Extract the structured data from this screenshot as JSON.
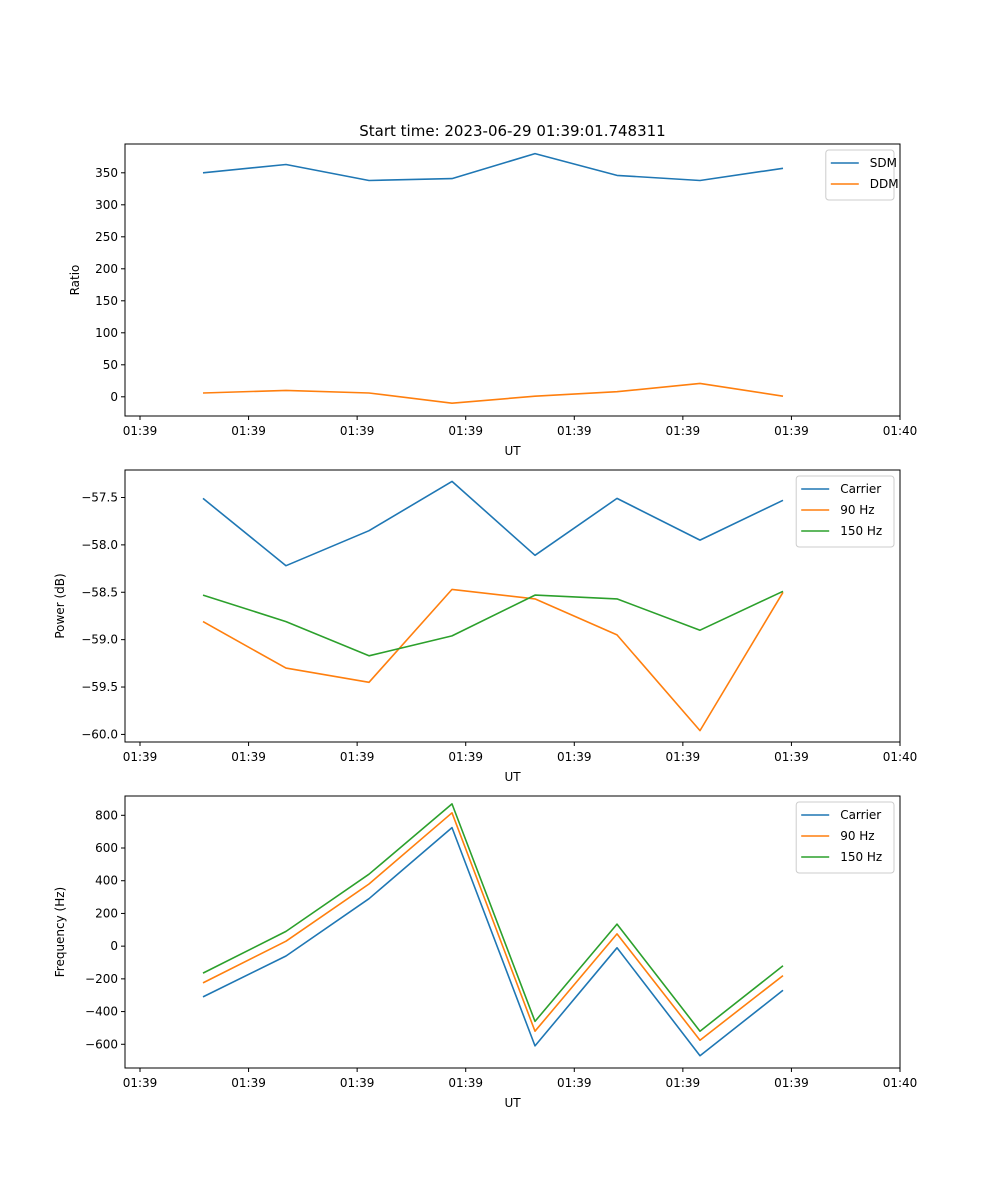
{
  "chart_data": [
    {
      "type": "line",
      "title": "Start time: 2023-06-29 01:39:01.748311",
      "xlabel": "UT",
      "ylabel": "Ratio",
      "x_tick_labels": [
        "01:39",
        "01:39",
        "01:39",
        "01:39",
        "01:39",
        "01:39",
        "01:39",
        "01:40"
      ],
      "y_ticks": [
        0,
        50,
        100,
        150,
        200,
        250,
        300,
        350
      ],
      "ylim": [
        -30,
        395
      ],
      "grid": false,
      "legend_position": "top-right",
      "series": [
        {
          "name": "SDM",
          "color": "#1f77b4",
          "values": [
            350,
            363,
            338,
            341,
            380,
            346,
            338,
            357
          ]
        },
        {
          "name": "DDM",
          "color": "#ff7f0e",
          "values": [
            6,
            10,
            6,
            -10,
            1,
            8,
            21,
            1
          ]
        }
      ]
    },
    {
      "type": "line",
      "title": "",
      "xlabel": "UT",
      "ylabel": "Power (dB)",
      "x_tick_labels": [
        "01:39",
        "01:39",
        "01:39",
        "01:39",
        "01:39",
        "01:39",
        "01:39",
        "01:40"
      ],
      "y_ticks": [
        -57.5,
        -58.0,
        -58.5,
        -59.0,
        -59.5,
        -60.0
      ],
      "y_tick_labels": [
        "−57.5",
        "−58.0",
        "−58.5",
        "−59.0",
        "−59.5",
        "−60.0"
      ],
      "ylim": [
        -60.08,
        -57.21
      ],
      "grid": false,
      "legend_position": "top-right",
      "series": [
        {
          "name": "Carrier",
          "color": "#1f77b4",
          "values": [
            -57.51,
            -58.22,
            -57.85,
            -57.33,
            -58.11,
            -57.51,
            -57.95,
            -57.53
          ]
        },
        {
          "name": "90 Hz",
          "color": "#ff7f0e",
          "values": [
            -58.81,
            -59.3,
            -59.45,
            -58.47,
            -58.57,
            -58.95,
            -59.96,
            -58.5
          ]
        },
        {
          "name": "150 Hz",
          "color": "#2ca02c",
          "values": [
            -58.53,
            -58.81,
            -59.17,
            -58.96,
            -58.53,
            -58.57,
            -58.9,
            -58.49
          ]
        }
      ]
    },
    {
      "type": "line",
      "title": "",
      "xlabel": "UT",
      "ylabel": "Frequency (Hz)",
      "x_tick_labels": [
        "01:39",
        "01:39",
        "01:39",
        "01:39",
        "01:39",
        "01:39",
        "01:39",
        "01:40"
      ],
      "y_ticks": [
        800,
        600,
        400,
        200,
        0,
        -200,
        -400,
        -600
      ],
      "y_tick_labels": [
        "800",
        "600",
        "400",
        "200",
        "0",
        "−200",
        "−400",
        "−600"
      ],
      "ylim": [
        -745,
        918
      ],
      "grid": false,
      "legend_position": "top-right",
      "series": [
        {
          "name": "Carrier",
          "color": "#1f77b4",
          "values": [
            -310,
            -60,
            290,
            725,
            -610,
            -10,
            -670,
            -270
          ]
        },
        {
          "name": "90 Hz",
          "color": "#ff7f0e",
          "values": [
            -225,
            30,
            380,
            815,
            -520,
            75,
            -575,
            -180
          ]
        },
        {
          "name": "150 Hz",
          "color": "#2ca02c",
          "values": [
            -165,
            90,
            440,
            870,
            -460,
            135,
            -520,
            -120
          ]
        }
      ]
    }
  ]
}
